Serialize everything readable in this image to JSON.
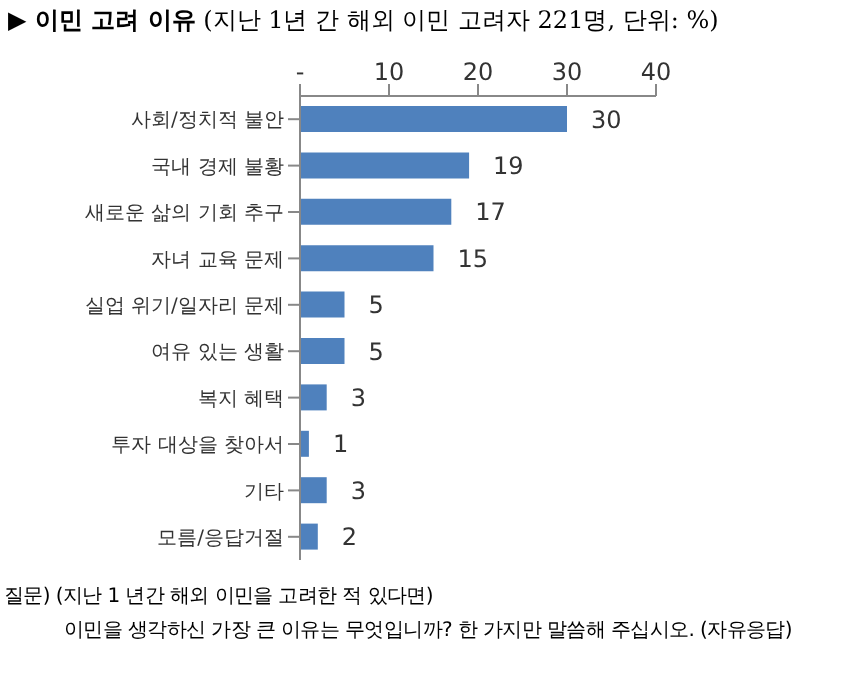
{
  "chart_data": {
    "type": "bar",
    "orientation": "horizontal",
    "title": "▶ 이민 고려 이유",
    "subtitle": "(지난 1년 간 해외 이민 고려자 221명, 단위: %)",
    "categories": [
      "사회/정치적 불안",
      "국내 경제 불황",
      "새로운 삶의 기회 추구",
      "자녀 교육 문제",
      "실업 위기/일자리 문제",
      "여유 있는 생활",
      "복지 혜택",
      "투자 대상을 찾아서",
      "기타",
      "모름/응답거절"
    ],
    "values": [
      30,
      19,
      17,
      15,
      5,
      5,
      3,
      1,
      3,
      2
    ],
    "color": "#4f81bd",
    "xlim": [
      0,
      40
    ],
    "xticks": [
      {
        "value": 0,
        "label": "-"
      },
      10,
      20,
      30,
      40
    ],
    "data_labels": true,
    "grid": false,
    "legend": false,
    "annotations": [
      "질문) (지난 1 년간 해외 이민을 고려한 적 있다면)",
      "이민을 생각하신 가장 큰 이유는 무엇입니까? 한 가지만 말씀해 주십시오. (자유응답)"
    ]
  }
}
